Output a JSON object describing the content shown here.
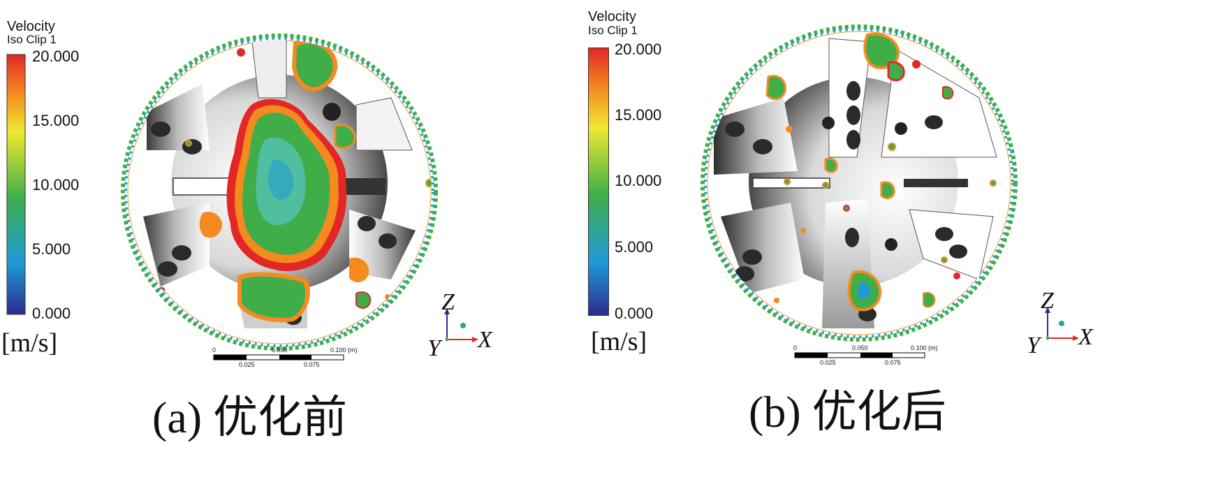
{
  "panels": [
    {
      "id": "a",
      "legend": {
        "title_line1": "Velocity",
        "title_line2": "Iso Clip 1",
        "ticks": [
          "20.000",
          "15.000",
          "10.000",
          "5.000",
          "0.000"
        ],
        "unit": "[m/s]",
        "colors": [
          "#2b2d8e",
          "#1f9ad6",
          "#3fae49",
          "#f0e930",
          "#f58a1f",
          "#e32726"
        ]
      },
      "axes": {
        "z": "Z",
        "y": "Y",
        "x": "X"
      },
      "scale": {
        "top": [
          "0",
          "0.050",
          "0.100",
          "(m)"
        ],
        "bottom": [
          "0.025",
          "0.075"
        ]
      },
      "caption": "(a)  优化前"
    },
    {
      "id": "b",
      "legend": {
        "title_line1": "Velocity",
        "title_line2": "Iso Clip 1",
        "ticks": [
          "20.000",
          "15.000",
          "10.000",
          "5.000",
          "0.000"
        ],
        "unit": "[m/s]",
        "colors": [
          "#2b2d8e",
          "#1f9ad6",
          "#3fae49",
          "#f0e930",
          "#f58a1f",
          "#e32726"
        ]
      },
      "axes": {
        "z": "Z",
        "y": "Y",
        "x": "X"
      },
      "scale": {
        "top": [
          "0",
          "0.050",
          "0.100",
          "(m)"
        ],
        "bottom": [
          "0.025",
          "0.075"
        ]
      },
      "caption": "(b)  优化后"
    }
  ]
}
